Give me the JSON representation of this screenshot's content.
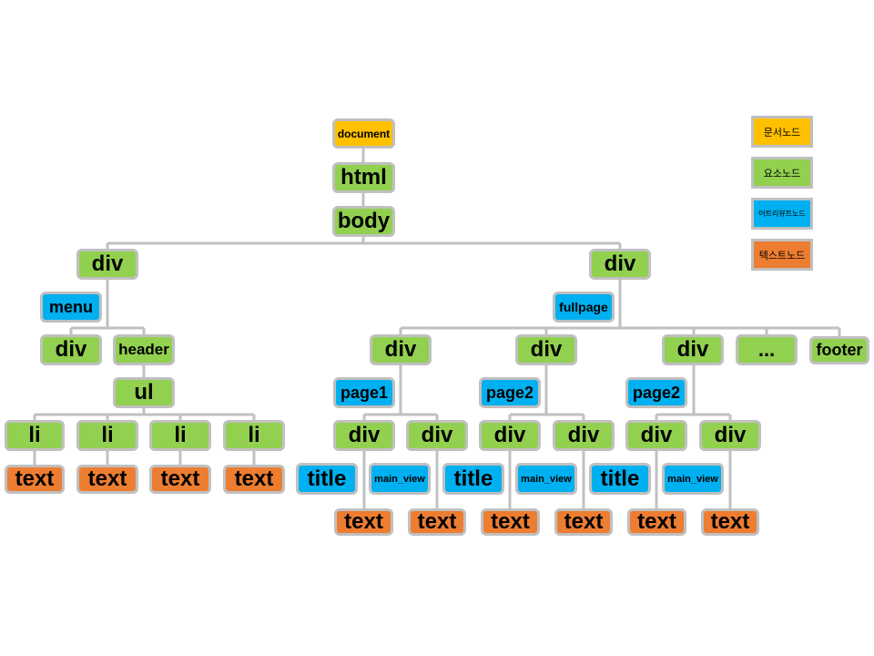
{
  "legend": {
    "document_node": "문서노드",
    "element_node": "요소노드",
    "attribute_node": "어트리뷰트노드",
    "text_node": "텍스트노드"
  },
  "colors": {
    "document": "#ffc000",
    "element": "#92d050",
    "attribute": "#00b0f0",
    "text": "#ed7d31",
    "connector": "#c0c0c0"
  },
  "tree": {
    "document": "document",
    "html": "html",
    "body": "body",
    "left_branch": {
      "div": "div",
      "menu": "menu",
      "inner_div": "div",
      "header": "header",
      "ul": "ul",
      "items": [
        {
          "li": "li",
          "text": "text"
        },
        {
          "li": "li",
          "text": "text"
        },
        {
          "li": "li",
          "text": "text"
        },
        {
          "li": "li",
          "text": "text"
        }
      ]
    },
    "right_branch": {
      "div": "div",
      "fullpage": "fullpage",
      "pages": [
        {
          "div": "div",
          "attr": "page1",
          "left_div": "div",
          "right_div": "div",
          "title": "title",
          "main_view": "main_view",
          "left_text": "text",
          "right_text": "text"
        },
        {
          "div": "div",
          "attr": "page2",
          "left_div": "div",
          "right_div": "div",
          "title": "title",
          "main_view": "main_view",
          "left_text": "text",
          "right_text": "text"
        },
        {
          "div": "div",
          "attr": "page2",
          "left_div": "div",
          "right_div": "div",
          "title": "title",
          "main_view": "main_view",
          "left_text": "text",
          "right_text": "text"
        }
      ],
      "more": "...",
      "footer": "footer"
    }
  }
}
